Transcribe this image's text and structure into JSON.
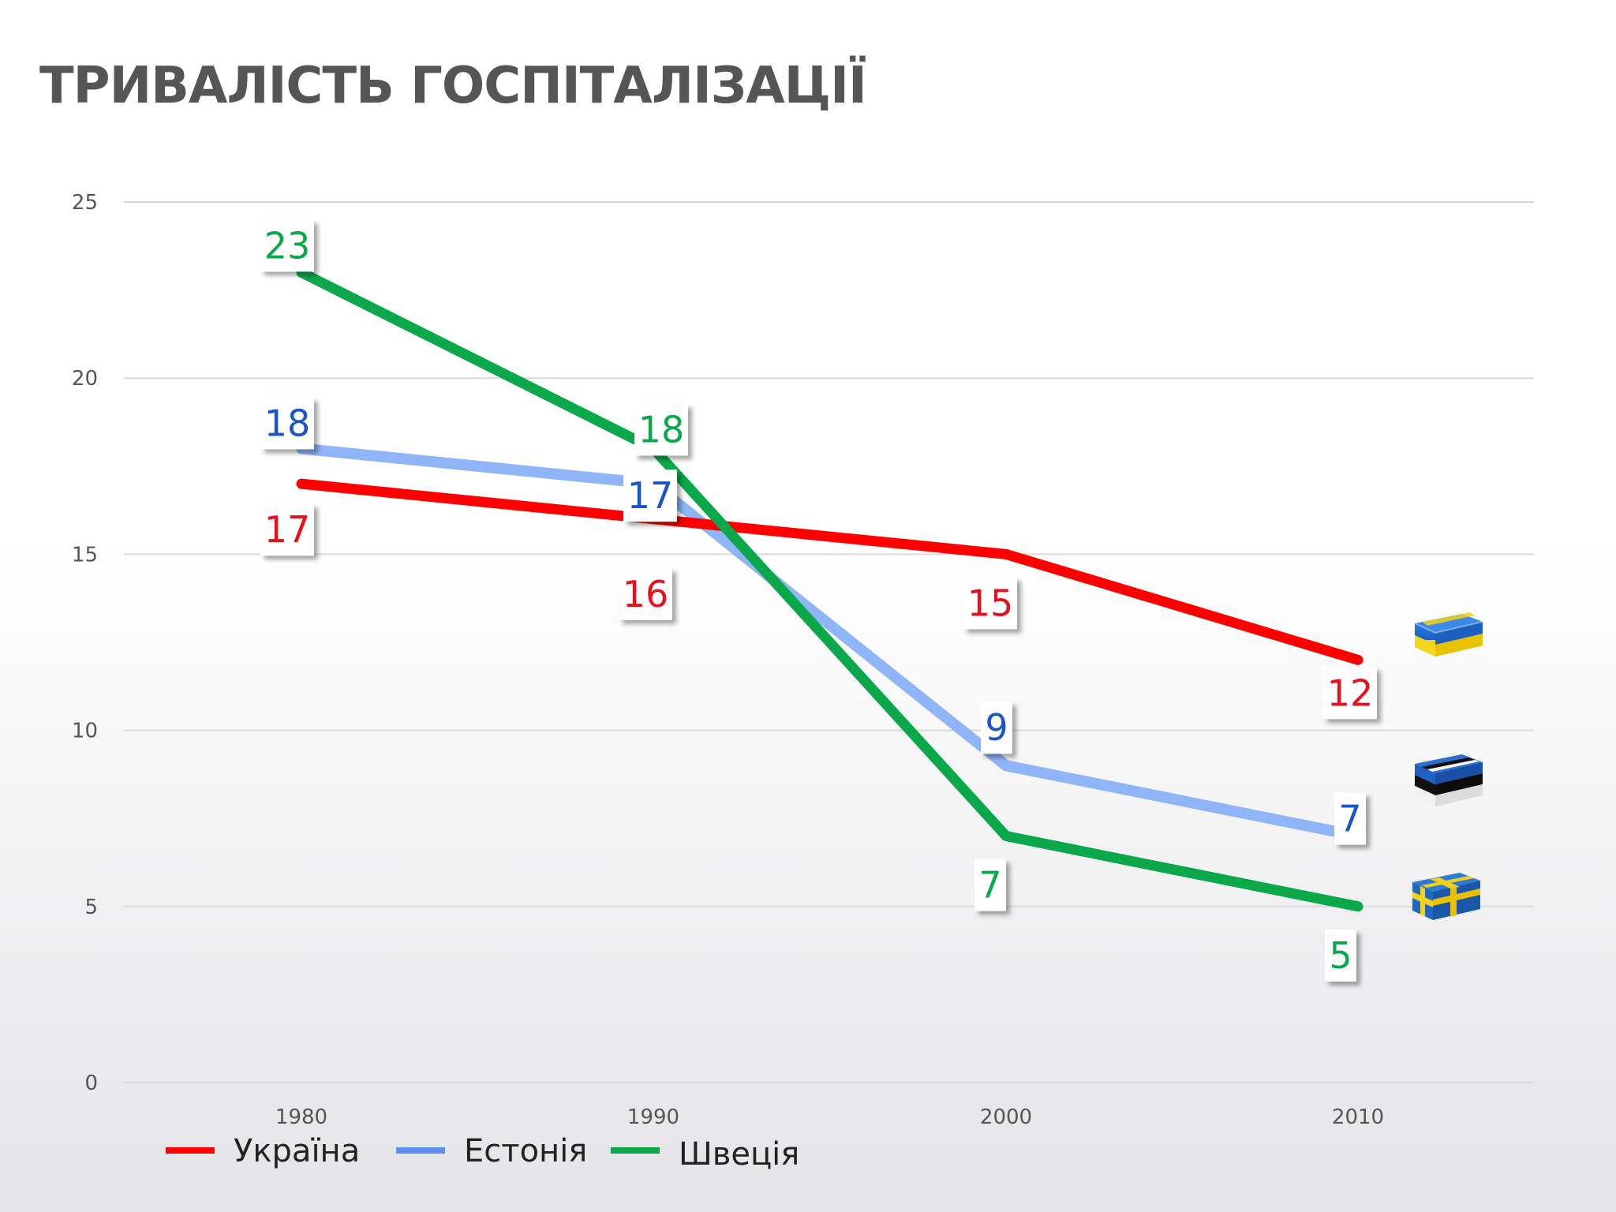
{
  "title": "ТРИВАЛІСТЬ ГОСПІТАЛІЗАЦІЇ",
  "chart_data": {
    "type": "line",
    "x": [
      "1980",
      "1990",
      "2000",
      "2010"
    ],
    "ylim": [
      0,
      25
    ],
    "yticks": [
      0,
      5,
      10,
      15,
      20,
      25
    ],
    "grid": true,
    "legend_position": "bottom-left",
    "data_labels": true,
    "series": [
      {
        "name": "Україна",
        "values": [
          17,
          16,
          15,
          12
        ],
        "color": "#ff0000",
        "label_color": "#e8101a",
        "flag_icon": "ukraine-flag-icon"
      },
      {
        "name": "Естонія",
        "values": [
          18,
          17,
          9,
          7
        ],
        "color": "#8fb4f7",
        "label_color": "#1a55c8",
        "legend_color": "#5b8ff0",
        "flag_icon": "estonia-flag-icon"
      },
      {
        "name": "Швеція",
        "values": [
          23,
          18,
          7,
          5
        ],
        "color": "#0aa84a",
        "label_color": "#0aa84a",
        "flag_icon": "sweden-flag-icon"
      }
    ]
  }
}
